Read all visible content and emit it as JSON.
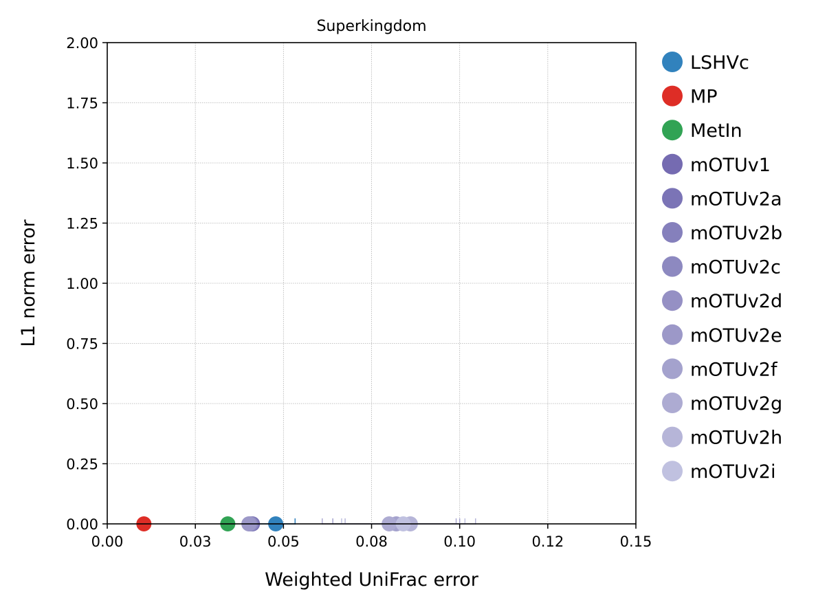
{
  "chart_data": {
    "type": "scatter",
    "title": "Superkingdom",
    "xlabel": "Weighted UniFrac error",
    "ylabel": "L1 norm error",
    "xlim": [
      0,
      0.15
    ],
    "ylim": [
      0,
      2
    ],
    "x_ticks": [
      0,
      0.025,
      0.05,
      0.075,
      0.1,
      0.125,
      0.15
    ],
    "x_tick_labels": [
      "0.00",
      "0.03",
      "0.05",
      "0.08",
      "0.10",
      "0.12",
      "0.15"
    ],
    "y_ticks": [
      0,
      0.25,
      0.5,
      0.75,
      1.0,
      1.25,
      1.5,
      1.75,
      2.0
    ],
    "y_tick_labels": [
      "0.00",
      "0.25",
      "0.50",
      "0.75",
      "1.00",
      "1.25",
      "1.50",
      "1.75",
      "2.00"
    ],
    "grid": true,
    "legend_position": "outside-right",
    "series": [
      {
        "name": "LSHVc",
        "color": "#3182bd",
        "x": 0.0478,
        "y": 0.0,
        "x_err": 0.0055
      },
      {
        "name": "MP",
        "color": "#de2d26",
        "x": 0.0104,
        "y": 0.0,
        "x_err": 0.0
      },
      {
        "name": "MetIn",
        "color": "#31a354",
        "x": 0.0342,
        "y": 0.0,
        "x_err": 0.0
      },
      {
        "name": "mOTUv1",
        "color": "#756bb1",
        "x": 0.0412,
        "y": 0.0,
        "x_err": 0.0
      },
      {
        "name": "mOTUv2a",
        "color": "#7b74b6",
        "x": 0.041,
        "y": 0.0,
        "x_err": 0.0
      },
      {
        "name": "mOTUv2b",
        "color": "#8580bc",
        "x": 0.0408,
        "y": 0.0,
        "x_err": 0.0
      },
      {
        "name": "mOTUv2c",
        "color": "#8d89c0",
        "x": 0.0406,
        "y": 0.0,
        "x_err": 0.0
      },
      {
        "name": "mOTUv2d",
        "color": "#9590c4",
        "x": 0.0404,
        "y": 0.0,
        "x_err": 0.0
      },
      {
        "name": "mOTUv2e",
        "color": "#9c98c8",
        "x": 0.0402,
        "y": 0.0,
        "x_err": 0.0
      },
      {
        "name": "mOTUv2f",
        "color": "#a4a2cd",
        "x": 0.082,
        "y": 0.0,
        "x_err": 0.018
      },
      {
        "name": "mOTUv2g",
        "color": "#adabd2",
        "x": 0.08,
        "y": 0.0,
        "x_err": 0.019
      },
      {
        "name": "mOTUv2h",
        "color": "#b6b5d8",
        "x": 0.086,
        "y": 0.0,
        "x_err": 0.0185
      },
      {
        "name": "mOTUv2i",
        "color": "#c0c1e0",
        "x": 0.084,
        "y": 0.0,
        "x_err": 0.0175
      }
    ]
  }
}
